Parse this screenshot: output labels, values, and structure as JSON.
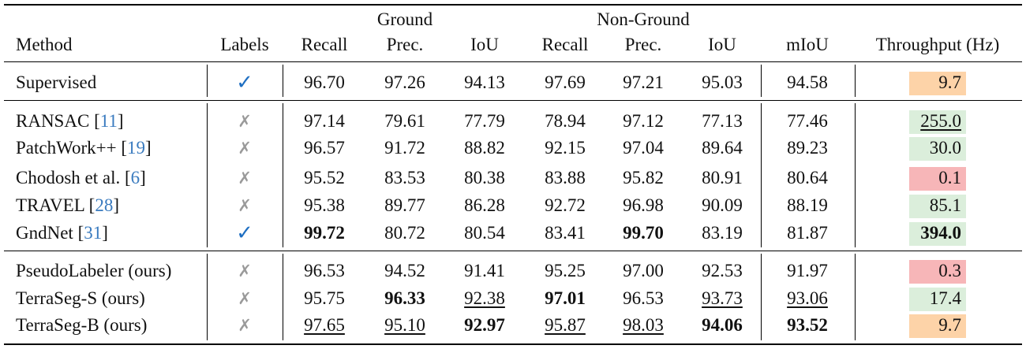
{
  "headers": {
    "group_ground": "Ground",
    "group_nonground": "Non-Ground",
    "columns": [
      "Method",
      "Labels",
      "Recall",
      "Prec.",
      "IoU",
      "Recall",
      "Prec.",
      "IoU",
      "mIoU",
      "Throughput (Hz)"
    ]
  },
  "colors": {
    "checkmark": "#1f6fc2",
    "cross": "#9a9a9a",
    "citation": "#3a7bbf",
    "throughput_green": "#dbeedb",
    "throughput_orange": "#fdd3a8",
    "throughput_red": "#f7b6b8"
  },
  "rows": [
    {
      "name": "Supervised",
      "ref": "",
      "labels": "✓",
      "label_type": "check",
      "values": [
        "96.70",
        "97.26",
        "94.13",
        "97.69",
        "97.21",
        "95.03",
        "94.58"
      ],
      "bold": [
        false,
        false,
        false,
        false,
        false,
        false,
        false
      ],
      "underline": [
        false,
        false,
        false,
        false,
        false,
        false,
        false
      ],
      "throughput": "9.7",
      "tp_color": "orange",
      "tp_bold": false,
      "tp_underline": false
    },
    {
      "name": "RANSAC",
      "ref": "11",
      "labels": "✗",
      "label_type": "cross",
      "values": [
        "97.14",
        "79.61",
        "77.79",
        "78.94",
        "97.12",
        "77.13",
        "77.46"
      ],
      "bold": [
        false,
        false,
        false,
        false,
        false,
        false,
        false
      ],
      "underline": [
        false,
        false,
        false,
        false,
        false,
        false,
        false
      ],
      "throughput": "255.0",
      "tp_color": "green",
      "tp_bold": false,
      "tp_underline": true
    },
    {
      "name": "PatchWork++",
      "ref": "19",
      "labels": "✗",
      "label_type": "cross",
      "values": [
        "96.57",
        "91.72",
        "88.82",
        "92.15",
        "97.04",
        "89.64",
        "89.23"
      ],
      "bold": [
        false,
        false,
        false,
        false,
        false,
        false,
        false
      ],
      "underline": [
        false,
        false,
        false,
        false,
        false,
        false,
        false
      ],
      "throughput": "30.0",
      "tp_color": "green",
      "tp_bold": false,
      "tp_underline": false
    },
    {
      "name": "Chodosh et al.",
      "ref": "6",
      "labels": "✗",
      "label_type": "cross",
      "values": [
        "95.52",
        "83.53",
        "80.38",
        "83.88",
        "95.82",
        "80.91",
        "80.64"
      ],
      "bold": [
        false,
        false,
        false,
        false,
        false,
        false,
        false
      ],
      "underline": [
        false,
        false,
        false,
        false,
        false,
        false,
        false
      ],
      "throughput": "0.1",
      "tp_color": "red",
      "tp_bold": false,
      "tp_underline": false
    },
    {
      "name": "TRAVEL",
      "ref": "28",
      "labels": "✗",
      "label_type": "cross",
      "values": [
        "95.38",
        "89.77",
        "86.28",
        "92.72",
        "96.98",
        "90.09",
        "88.19"
      ],
      "bold": [
        false,
        false,
        false,
        false,
        false,
        false,
        false
      ],
      "underline": [
        false,
        false,
        false,
        false,
        false,
        false,
        false
      ],
      "throughput": "85.1",
      "tp_color": "green",
      "tp_bold": false,
      "tp_underline": false
    },
    {
      "name": "GndNet",
      "ref": "31",
      "labels": "✓",
      "label_type": "check",
      "values": [
        "99.72",
        "80.72",
        "80.54",
        "83.41",
        "99.70",
        "83.19",
        "81.87"
      ],
      "bold": [
        true,
        false,
        false,
        false,
        true,
        false,
        false
      ],
      "underline": [
        false,
        false,
        false,
        false,
        false,
        false,
        false
      ],
      "throughput": "394.0",
      "tp_color": "green",
      "tp_bold": true,
      "tp_underline": false
    },
    {
      "name": "PseudoLabeler (ours)",
      "ref": "",
      "labels": "✗",
      "label_type": "cross",
      "values": [
        "96.53",
        "94.52",
        "91.41",
        "95.25",
        "97.00",
        "92.53",
        "91.97"
      ],
      "bold": [
        false,
        false,
        false,
        false,
        false,
        false,
        false
      ],
      "underline": [
        false,
        false,
        false,
        false,
        false,
        false,
        false
      ],
      "throughput": "0.3",
      "tp_color": "red",
      "tp_bold": false,
      "tp_underline": false
    },
    {
      "name": "TerraSeg-S (ours)",
      "ref": "",
      "labels": "✗",
      "label_type": "cross",
      "values": [
        "95.75",
        "96.33",
        "92.38",
        "97.01",
        "96.53",
        "93.73",
        "93.06"
      ],
      "bold": [
        false,
        true,
        false,
        true,
        false,
        false,
        false
      ],
      "underline": [
        false,
        false,
        true,
        false,
        false,
        true,
        true
      ],
      "throughput": "17.4",
      "tp_color": "green",
      "tp_bold": false,
      "tp_underline": false
    },
    {
      "name": "TerraSeg-B (ours)",
      "ref": "",
      "labels": "✗",
      "label_type": "cross",
      "values": [
        "97.65",
        "95.10",
        "92.97",
        "95.87",
        "98.03",
        "94.06",
        "93.52"
      ],
      "bold": [
        false,
        false,
        true,
        false,
        false,
        true,
        true
      ],
      "underline": [
        true,
        true,
        false,
        true,
        true,
        false,
        false
      ],
      "throughput": "9.7",
      "tp_color": "orange",
      "tp_bold": false,
      "tp_underline": false
    }
  ]
}
